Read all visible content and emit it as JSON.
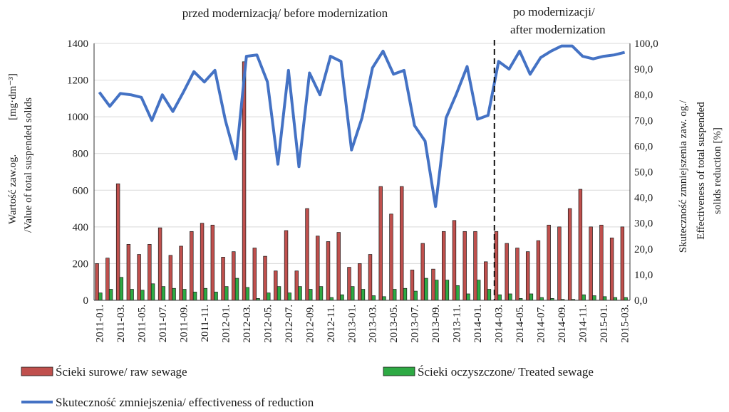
{
  "chart_data": {
    "type": "bar",
    "annotations": {
      "before": "przed modernizacją/ before modernization",
      "after_line1": "po modernizacji/",
      "after_line2": "after modernization"
    },
    "ylabel_left_line1": "Wartość zaw.og.",
    "ylabel_left_unit": "[mg·dm⁻³]",
    "ylabel_left_line2": "/Value of total suspended solids",
    "ylabel_right_line1": "Skuteczność zmniejszenia zaw. og./",
    "ylabel_right_line2": "Effectiveness of total suspended",
    "ylabel_right_line3": "solids  reduction [%]",
    "ylim_left": [
      0,
      1400
    ],
    "yticks_left": [
      "0",
      "200",
      "400",
      "600",
      "800",
      "1000",
      "1200",
      "1400"
    ],
    "ylim_right": [
      0,
      100
    ],
    "yticks_right": [
      "0,0",
      "10,0",
      "20,0",
      "30,0",
      "40,0",
      "50,0",
      "60,0",
      "70,0",
      "80,0",
      "90,0",
      "100,0"
    ],
    "categories": [
      "2011-01.",
      "2011-02.",
      "2011-03.",
      "2011-04.",
      "2011-05.",
      "2011-06.",
      "2011-07.",
      "2011-08.",
      "2011-09.",
      "2011-10.",
      "2011-11.",
      "2011-12.",
      "2012-01.",
      "2012-02.",
      "2012-03.",
      "2012-04.",
      "2012-05.",
      "2012-06.",
      "2012-07.",
      "2012-08.",
      "2012-09.",
      "2012-10.",
      "2012-11.",
      "2012-12.",
      "2013-01.",
      "2013-02.",
      "2013-03.",
      "2013-04.",
      "2013-05.",
      "2013-06.",
      "2013-07.",
      "2013-08.",
      "2013-09.",
      "2013-10.",
      "2013-11.",
      "2013-12.",
      "2014-01.",
      "2014-02.",
      "2014-03.",
      "2014-04.",
      "2014-05.",
      "2014-06.",
      "2014-07.",
      "2014-08.",
      "2014-09.",
      "2014-10.",
      "2014-11.",
      "2014-12.",
      "2015-01.",
      "2015-02.",
      "2015-03."
    ],
    "xtick_labels": [
      "2011-01.",
      "2011-03.",
      "2011-05.",
      "2011-07.",
      "2011-09.",
      "2011-11.",
      "2012-01.",
      "2012-03.",
      "2012-05.",
      "2012-07.",
      "2012-09.",
      "2012-11.",
      "2013-01.",
      "2013-03.",
      "2013-05.",
      "2013-07.",
      "2013-09.",
      "2013-11.",
      "2014-01.",
      "2014-03.",
      "2014-05.",
      "2014-07.",
      "2014-09.",
      "2014-11.",
      "2015-01.",
      "2015-03."
    ],
    "divider_after_category": "2014-03.",
    "series": [
      {
        "name": "Ścieki surowe/ raw sewage",
        "color": "#c0504d",
        "axis": "left",
        "values": [
          200,
          230,
          635,
          305,
          250,
          305,
          395,
          245,
          295,
          375,
          420,
          410,
          235,
          265,
          1300,
          285,
          240,
          160,
          380,
          160,
          500,
          350,
          320,
          370,
          180,
          200,
          250,
          620,
          470,
          620,
          165,
          310,
          170,
          375,
          435,
          375,
          375,
          210,
          375,
          310,
          285,
          265,
          325,
          410,
          400,
          500,
          605,
          400,
          410,
          340,
          400
        ]
      },
      {
        "name": "Ścieki oczyszczone/ Treated sewage",
        "color": "#2eaa44",
        "axis": "left",
        "values": [
          40,
          60,
          125,
          60,
          55,
          90,
          75,
          65,
          60,
          45,
          65,
          45,
          75,
          120,
          70,
          10,
          40,
          75,
          40,
          75,
          60,
          75,
          15,
          30,
          75,
          60,
          25,
          20,
          60,
          65,
          50,
          120,
          110,
          110,
          80,
          35,
          110,
          60,
          30,
          35,
          10,
          35,
          15,
          10,
          5,
          5,
          30,
          25,
          20,
          15,
          15
        ]
      },
      {
        "name": "Skuteczność zmniejszenia/ effectiveness of reduction",
        "color": "#4472c4",
        "axis": "right",
        "type": "line",
        "values": [
          81,
          75.5,
          80.5,
          80,
          79,
          70,
          80,
          73.5,
          81,
          89,
          85,
          89.5,
          70,
          55,
          95,
          95.5,
          85,
          53,
          89.5,
          52,
          88.5,
          80,
          95,
          93,
          58.5,
          71,
          90.5,
          97,
          88,
          89.5,
          68,
          62,
          36.5,
          71,
          80.5,
          91,
          70.5,
          72,
          93,
          90,
          97,
          88,
          94.5,
          97,
          99,
          99,
          95,
          94,
          95,
          95.5,
          96.5
        ]
      }
    ],
    "legend": [
      {
        "label": "Ścieki surowe/ raw sewage"
      },
      {
        "label": "Ścieki oczyszczone/ Treated sewage"
      },
      {
        "label": "Skuteczność zmniejszenia/ effectiveness of reduction"
      }
    ]
  }
}
